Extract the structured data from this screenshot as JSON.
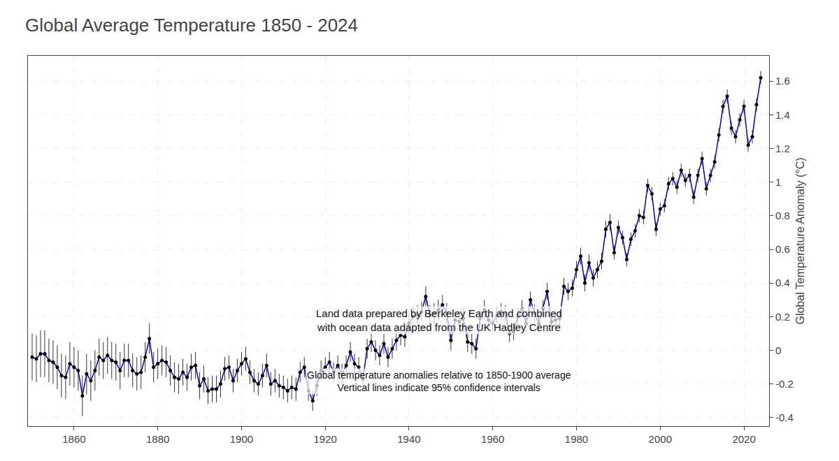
{
  "chart_data": {
    "type": "line",
    "title": "Global Average Temperature 1850 - 2024",
    "ylabel": "Global Temperature Anomaly (°C)",
    "annotations": [
      "Land data prepared by Berkeley Earth and combined\nwith ocean data adapted from the UK Hadley Centre",
      "Global temperature anomalies relative to 1850-1900 average\nVertical lines indicate 95% confidence intervals"
    ],
    "x": [
      1850,
      1851,
      1852,
      1853,
      1854,
      1855,
      1856,
      1857,
      1858,
      1859,
      1860,
      1861,
      1862,
      1863,
      1864,
      1865,
      1866,
      1867,
      1868,
      1869,
      1870,
      1871,
      1872,
      1873,
      1874,
      1875,
      1876,
      1877,
      1878,
      1879,
      1880,
      1881,
      1882,
      1883,
      1884,
      1885,
      1886,
      1887,
      1888,
      1889,
      1890,
      1891,
      1892,
      1893,
      1894,
      1895,
      1896,
      1897,
      1898,
      1899,
      1900,
      1901,
      1902,
      1903,
      1904,
      1905,
      1906,
      1907,
      1908,
      1909,
      1910,
      1911,
      1912,
      1913,
      1914,
      1915,
      1916,
      1917,
      1918,
      1919,
      1920,
      1921,
      1922,
      1923,
      1924,
      1925,
      1926,
      1927,
      1928,
      1929,
      1930,
      1931,
      1932,
      1933,
      1934,
      1935,
      1936,
      1937,
      1938,
      1939,
      1940,
      1941,
      1942,
      1943,
      1944,
      1945,
      1946,
      1947,
      1948,
      1949,
      1950,
      1951,
      1952,
      1953,
      1954,
      1955,
      1956,
      1957,
      1958,
      1959,
      1960,
      1961,
      1962,
      1963,
      1964,
      1965,
      1966,
      1967,
      1968,
      1969,
      1970,
      1971,
      1972,
      1973,
      1974,
      1975,
      1976,
      1977,
      1978,
      1979,
      1980,
      1981,
      1982,
      1983,
      1984,
      1985,
      1986,
      1987,
      1988,
      1989,
      1990,
      1991,
      1992,
      1993,
      1994,
      1995,
      1996,
      1997,
      1998,
      1999,
      2000,
      2001,
      2002,
      2003,
      2004,
      2005,
      2006,
      2007,
      2008,
      2009,
      2010,
      2011,
      2012,
      2013,
      2014,
      2015,
      2016,
      2017,
      2018,
      2019,
      2020,
      2021,
      2022,
      2023,
      2024
    ],
    "series": [
      {
        "type": "line",
        "color": "#0000cc",
        "values": [
          -0.04,
          -0.05,
          -0.02,
          -0.02,
          -0.06,
          -0.07,
          -0.1,
          -0.15,
          -0.16,
          -0.08,
          -0.1,
          -0.12,
          -0.27,
          -0.14,
          -0.18,
          -0.12,
          -0.04,
          -0.06,
          -0.03,
          -0.06,
          -0.07,
          -0.12,
          -0.06,
          -0.06,
          -0.12,
          -0.14,
          -0.13,
          -0.04,
          0.07,
          -0.1,
          -0.08,
          -0.06,
          -0.07,
          -0.12,
          -0.16,
          -0.17,
          -0.13,
          -0.16,
          -0.1,
          -0.09,
          -0.21,
          -0.17,
          -0.24,
          -0.23,
          -0.23,
          -0.2,
          -0.11,
          -0.1,
          -0.18,
          -0.12,
          -0.08,
          -0.05,
          -0.13,
          -0.18,
          -0.2,
          -0.15,
          -0.09,
          -0.2,
          -0.18,
          -0.21,
          -0.22,
          -0.24,
          -0.22,
          -0.23,
          -0.13,
          -0.1,
          -0.24,
          -0.3,
          -0.21,
          -0.12,
          -0.1,
          -0.07,
          -0.13,
          -0.09,
          -0.14,
          -0.09,
          -0.01,
          -0.08,
          -0.1,
          -0.17,
          0.01,
          0.05,
          0.0,
          -0.03,
          0.04,
          -0.04,
          0.01,
          0.06,
          0.09,
          0.08,
          0.16,
          0.2,
          0.21,
          0.23,
          0.32,
          0.21,
          0.22,
          0.24,
          0.27,
          0.22,
          0.06,
          0.18,
          0.17,
          0.19,
          0.05,
          0.04,
          0.01,
          0.19,
          0.24,
          0.18,
          0.16,
          0.21,
          0.23,
          0.22,
          0.1,
          0.11,
          0.2,
          0.25,
          0.16,
          0.3,
          0.22,
          0.16,
          0.25,
          0.35,
          0.17,
          0.18,
          0.19,
          0.38,
          0.35,
          0.37,
          0.48,
          0.56,
          0.4,
          0.52,
          0.43,
          0.48,
          0.53,
          0.72,
          0.76,
          0.58,
          0.73,
          0.67,
          0.54,
          0.66,
          0.71,
          0.8,
          0.79,
          0.98,
          0.93,
          0.72,
          0.84,
          0.86,
          0.99,
          1.02,
          0.97,
          1.07,
          1.01,
          1.04,
          0.91,
          1.04,
          1.14,
          0.96,
          1.04,
          1.12,
          1.28,
          1.45,
          1.51,
          1.32,
          1.27,
          1.37,
          1.45,
          1.22,
          1.27,
          1.46,
          1.62
        ]
      },
      {
        "type": "scatter",
        "color": "#000000",
        "marker": "circle",
        "values": [
          -0.04,
          -0.05,
          -0.02,
          -0.02,
          -0.06,
          -0.07,
          -0.1,
          -0.15,
          -0.16,
          -0.08,
          -0.1,
          -0.12,
          -0.27,
          -0.14,
          -0.18,
          -0.12,
          -0.04,
          -0.06,
          -0.03,
          -0.06,
          -0.07,
          -0.12,
          -0.06,
          -0.06,
          -0.12,
          -0.14,
          -0.13,
          -0.04,
          0.07,
          -0.1,
          -0.08,
          -0.06,
          -0.07,
          -0.12,
          -0.16,
          -0.17,
          -0.13,
          -0.16,
          -0.1,
          -0.09,
          -0.21,
          -0.17,
          -0.24,
          -0.23,
          -0.23,
          -0.2,
          -0.11,
          -0.1,
          -0.18,
          -0.12,
          -0.08,
          -0.05,
          -0.13,
          -0.18,
          -0.2,
          -0.15,
          -0.09,
          -0.2,
          -0.18,
          -0.21,
          -0.22,
          -0.24,
          -0.22,
          -0.23,
          -0.13,
          -0.1,
          -0.24,
          -0.3,
          -0.21,
          -0.12,
          -0.1,
          -0.07,
          -0.13,
          -0.09,
          -0.14,
          -0.09,
          -0.01,
          -0.08,
          -0.1,
          -0.17,
          0.01,
          0.05,
          0.0,
          -0.03,
          0.04,
          -0.04,
          0.01,
          0.06,
          0.09,
          0.08,
          0.16,
          0.2,
          0.21,
          0.23,
          0.32,
          0.21,
          0.22,
          0.24,
          0.27,
          0.22,
          0.06,
          0.18,
          0.17,
          0.19,
          0.05,
          0.04,
          0.01,
          0.19,
          0.24,
          0.18,
          0.16,
          0.21,
          0.23,
          0.22,
          0.1,
          0.11,
          0.2,
          0.25,
          0.16,
          0.3,
          0.22,
          0.16,
          0.25,
          0.35,
          0.17,
          0.18,
          0.19,
          0.38,
          0.35,
          0.37,
          0.48,
          0.56,
          0.4,
          0.52,
          0.43,
          0.48,
          0.53,
          0.72,
          0.76,
          0.58,
          0.73,
          0.67,
          0.54,
          0.66,
          0.71,
          0.8,
          0.79,
          0.98,
          0.93,
          0.72,
          0.84,
          0.86,
          0.99,
          1.02,
          0.97,
          1.07,
          1.01,
          1.04,
          0.91,
          1.04,
          1.14,
          0.96,
          1.04,
          1.12,
          1.28,
          1.45,
          1.51,
          1.32,
          1.27,
          1.37,
          1.45,
          1.22,
          1.27,
          1.46,
          1.62
        ],
        "error": [
          0.14,
          0.14,
          0.14,
          0.14,
          0.13,
          0.13,
          0.13,
          0.13,
          0.13,
          0.13,
          0.12,
          0.12,
          0.12,
          0.12,
          0.12,
          0.12,
          0.11,
          0.11,
          0.11,
          0.11,
          0.11,
          0.11,
          0.1,
          0.1,
          0.1,
          0.1,
          0.1,
          0.09,
          0.09,
          0.09,
          0.09,
          0.09,
          0.09,
          0.09,
          0.09,
          0.09,
          0.08,
          0.08,
          0.08,
          0.08,
          0.08,
          0.08,
          0.08,
          0.08,
          0.08,
          0.08,
          0.07,
          0.07,
          0.07,
          0.07,
          0.07,
          0.07,
          0.07,
          0.07,
          0.07,
          0.07,
          0.07,
          0.07,
          0.07,
          0.07,
          0.07,
          0.07,
          0.07,
          0.07,
          0.06,
          0.06,
          0.06,
          0.06,
          0.06,
          0.06,
          0.06,
          0.06,
          0.06,
          0.06,
          0.06,
          0.06,
          0.06,
          0.06,
          0.06,
          0.06,
          0.06,
          0.06,
          0.06,
          0.06,
          0.06,
          0.06,
          0.06,
          0.06,
          0.06,
          0.06,
          0.06,
          0.06,
          0.06,
          0.06,
          0.06,
          0.06,
          0.06,
          0.06,
          0.06,
          0.06,
          0.06,
          0.06,
          0.06,
          0.06,
          0.06,
          0.06,
          0.06,
          0.06,
          0.06,
          0.05,
          0.05,
          0.05,
          0.05,
          0.05,
          0.05,
          0.05,
          0.05,
          0.05,
          0.05,
          0.05,
          0.05,
          0.05,
          0.05,
          0.05,
          0.05,
          0.05,
          0.05,
          0.05,
          0.05,
          0.05,
          0.05,
          0.05,
          0.05,
          0.05,
          0.05,
          0.05,
          0.05,
          0.05,
          0.05,
          0.04,
          0.04,
          0.04,
          0.04,
          0.04,
          0.04,
          0.04,
          0.04,
          0.04,
          0.04,
          0.04,
          0.04,
          0.04,
          0.04,
          0.04,
          0.04,
          0.04,
          0.04,
          0.04,
          0.04,
          0.04,
          0.04,
          0.04,
          0.04,
          0.04,
          0.04,
          0.04,
          0.04,
          0.04,
          0.04,
          0.04,
          0.04,
          0.04,
          0.04,
          0.04,
          0.04
        ]
      }
    ],
    "xlim": [
      1849,
      2026
    ],
    "xticks": [
      1860,
      1880,
      1900,
      1920,
      1940,
      1960,
      1980,
      2000,
      2020
    ],
    "ylim": [
      -0.45,
      1.75
    ],
    "yticks": [
      -0.4,
      -0.2,
      0,
      0.2,
      0.4,
      0.6,
      0.8,
      1,
      1.2,
      1.4,
      1.6
    ],
    "grid": true
  }
}
